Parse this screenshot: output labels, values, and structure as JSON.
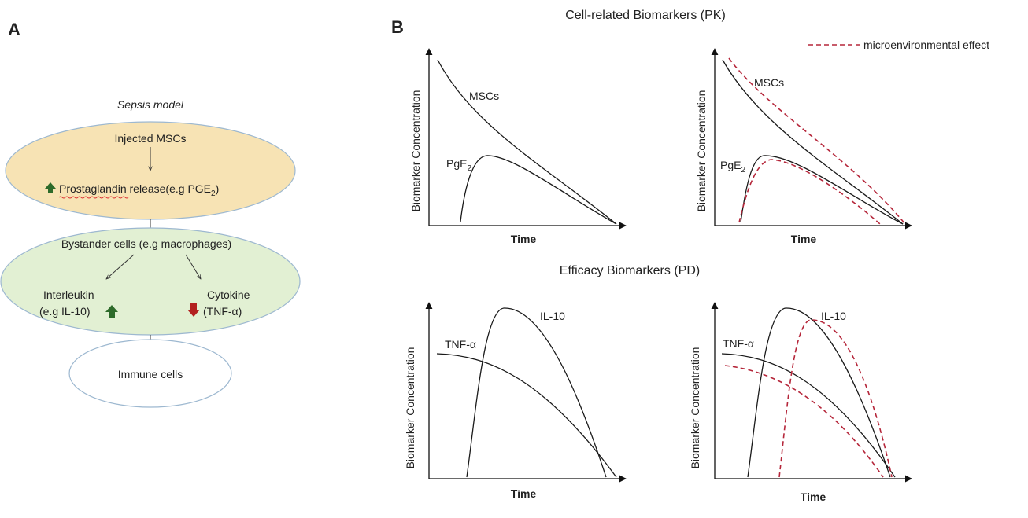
{
  "panel_a": {
    "label": "A",
    "title": "Sepsis model",
    "injected": "Injected MSCs",
    "prostaglandin_word": "Prostaglandin",
    "prostaglandin_rest": " release(e.g PGE",
    "prostaglandin_sub": "2",
    "prostaglandin_close": ")",
    "bystander": "Bystander cells (e.g macrophages)",
    "interleukin_1": "Interleukin",
    "interleukin_2": "(e.g IL-10)",
    "cytokine_1": "Cytokine",
    "cytokine_2": "(TNF-α)",
    "immune": "Immune cells",
    "colors": {
      "ellipse_top": "#f7e3b4",
      "ellipse_mid": "#e2f0d3",
      "ellipse_bottom": "#ffffff",
      "ellipse_stroke": "#9db8d0",
      "up_arrow": "#2e6b2a",
      "down_arrow": "#b3201f"
    }
  },
  "panel_b": {
    "label": "B",
    "pk_title": "Cell-related Biomarkers (PK)",
    "pd_title": "Efficacy Biomarkers (PD)",
    "legend_label": "microenvironmental effect",
    "x_axis": "Time",
    "y_axis": "Biomarker Concentration",
    "labels": {
      "mscs": "MSCs",
      "pge_base": "PgE",
      "pge_sub": "2",
      "il10": "IL-10",
      "tnf": "TNF-α"
    }
  }
}
